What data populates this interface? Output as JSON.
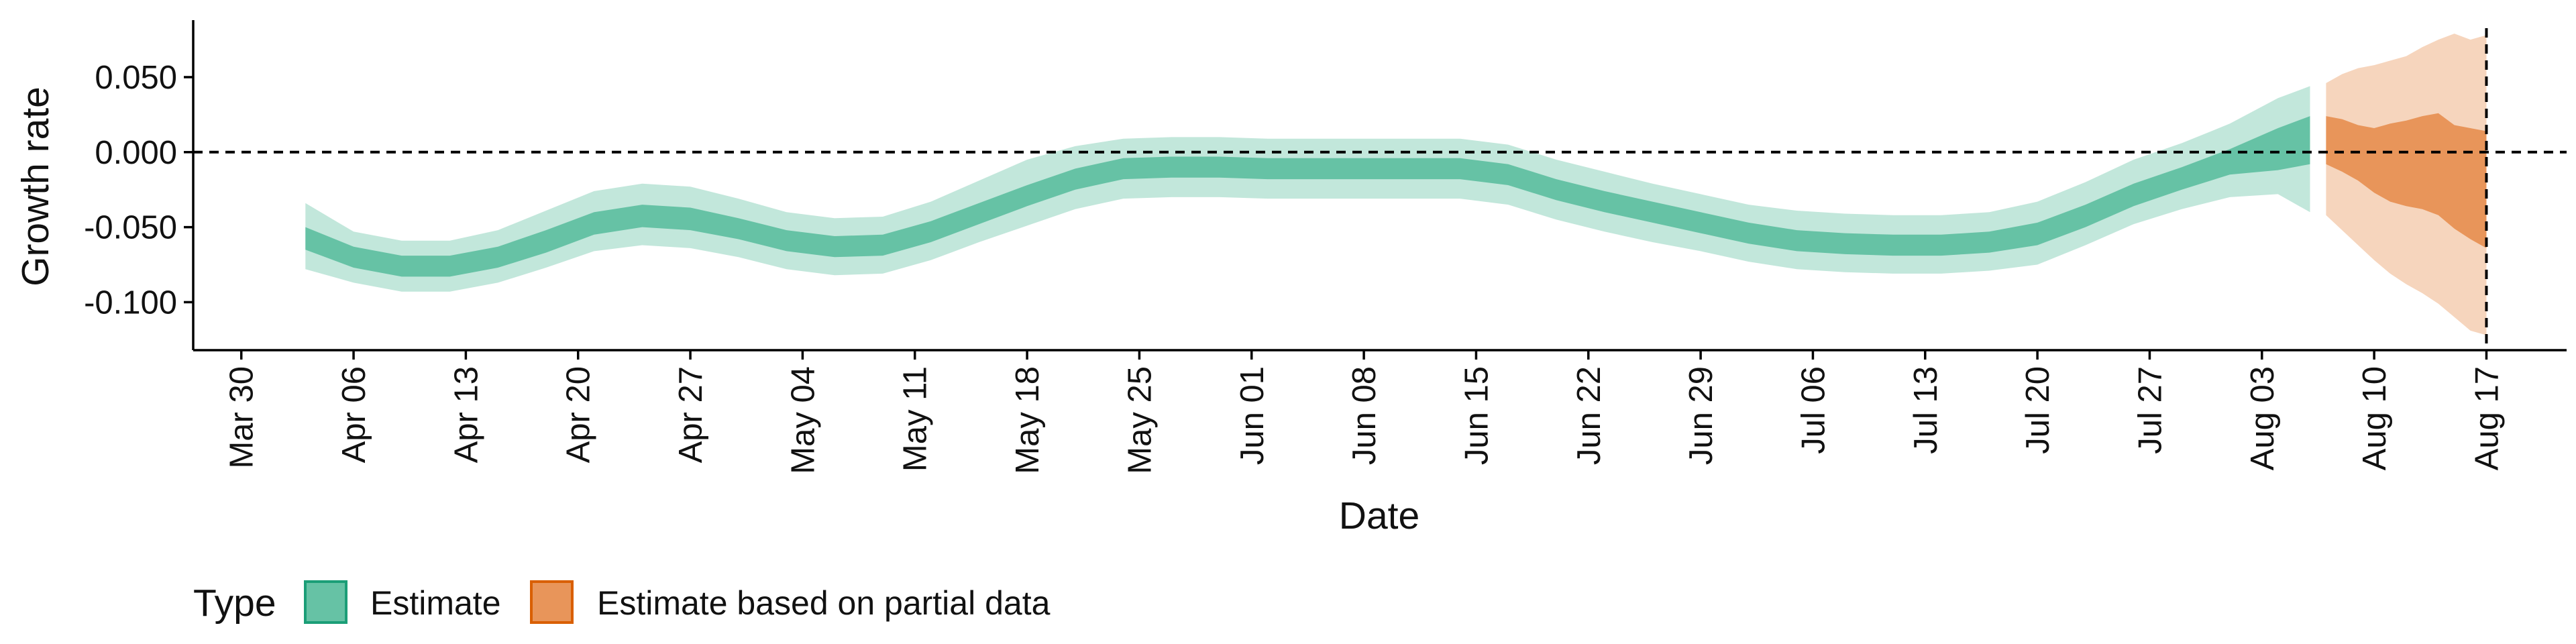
{
  "chart_data": {
    "type": "area",
    "xlabel": "Date",
    "ylabel": "Growth rate",
    "x_axis": {
      "type": "date",
      "range": [
        "2020-03-27",
        "2020-08-22"
      ],
      "ticks": [
        "2020-03-30",
        "2020-04-06",
        "2020-04-13",
        "2020-04-20",
        "2020-04-27",
        "2020-05-04",
        "2020-05-11",
        "2020-05-18",
        "2020-05-25",
        "2020-06-01",
        "2020-06-08",
        "2020-06-15",
        "2020-06-22",
        "2020-06-29",
        "2020-07-06",
        "2020-07-13",
        "2020-07-20",
        "2020-07-27",
        "2020-08-03",
        "2020-08-10",
        "2020-08-17"
      ],
      "tick_labels": [
        "Mar 30",
        "Apr 06",
        "Apr 13",
        "Apr 20",
        "Apr 27",
        "May 04",
        "May 11",
        "May 18",
        "May 25",
        "Jun 01",
        "Jun 08",
        "Jun 15",
        "Jun 22",
        "Jun 29",
        "Jul 06",
        "Jul 13",
        "Jul 20",
        "Jul 27",
        "Aug 03",
        "Aug 10",
        "Aug 17"
      ]
    },
    "y_axis": {
      "range": [
        -0.132,
        0.088
      ],
      "ticks": [
        0.05,
        0.0,
        -0.05,
        -0.1
      ],
      "tick_labels": [
        "0.050",
        "0.000",
        "-0.050",
        "-0.100"
      ]
    },
    "reference_lines": [
      {
        "axis": "y",
        "value": 0.0,
        "style": "dashed"
      },
      {
        "axis": "x",
        "value": "2020-08-17",
        "style": "dashed"
      }
    ],
    "grid": false,
    "legend": {
      "title": "Type",
      "position": "bottom-left",
      "entries": [
        {
          "label": "Estimate",
          "color": "#66c2a5",
          "border": "#1b9e77"
        },
        {
          "label": "Estimate based on partial data",
          "color": "#e8955a",
          "border": "#d95f02"
        }
      ]
    },
    "series": [
      {
        "name": "Estimate",
        "color": "#66c2a5",
        "x": [
          "2020-04-03",
          "2020-04-06",
          "2020-04-09",
          "2020-04-12",
          "2020-04-15",
          "2020-04-18",
          "2020-04-21",
          "2020-04-24",
          "2020-04-27",
          "2020-04-30",
          "2020-05-03",
          "2020-05-06",
          "2020-05-09",
          "2020-05-12",
          "2020-05-15",
          "2020-05-18",
          "2020-05-21",
          "2020-05-24",
          "2020-05-27",
          "2020-05-30",
          "2020-06-02",
          "2020-06-05",
          "2020-06-08",
          "2020-06-11",
          "2020-06-14",
          "2020-06-17",
          "2020-06-20",
          "2020-06-23",
          "2020-06-26",
          "2020-06-29",
          "2020-07-02",
          "2020-07-05",
          "2020-07-08",
          "2020-07-11",
          "2020-07-14",
          "2020-07-17",
          "2020-07-20",
          "2020-07-23",
          "2020-07-26",
          "2020-07-29",
          "2020-08-01",
          "2020-08-04",
          "2020-08-06"
        ],
        "inner_lower": [
          -0.065,
          -0.077,
          -0.083,
          -0.083,
          -0.077,
          -0.067,
          -0.055,
          -0.05,
          -0.052,
          -0.058,
          -0.066,
          -0.07,
          -0.069,
          -0.06,
          -0.048,
          -0.036,
          -0.025,
          -0.018,
          -0.017,
          -0.017,
          -0.018,
          -0.018,
          -0.018,
          -0.018,
          -0.018,
          -0.022,
          -0.032,
          -0.04,
          -0.047,
          -0.054,
          -0.061,
          -0.066,
          -0.068,
          -0.069,
          -0.069,
          -0.067,
          -0.062,
          -0.05,
          -0.036,
          -0.025,
          -0.015,
          -0.012,
          -0.008
        ],
        "inner_upper": [
          -0.05,
          -0.063,
          -0.069,
          -0.069,
          -0.063,
          -0.052,
          -0.04,
          -0.035,
          -0.037,
          -0.044,
          -0.052,
          -0.056,
          -0.055,
          -0.046,
          -0.034,
          -0.022,
          -0.011,
          -0.004,
          -0.003,
          -0.003,
          -0.004,
          -0.004,
          -0.004,
          -0.004,
          -0.004,
          -0.008,
          -0.018,
          -0.026,
          -0.033,
          -0.04,
          -0.047,
          -0.052,
          -0.054,
          -0.055,
          -0.055,
          -0.053,
          -0.047,
          -0.035,
          -0.021,
          -0.01,
          0.002,
          0.016,
          0.024
        ],
        "outer_lower": [
          -0.078,
          -0.087,
          -0.093,
          -0.093,
          -0.087,
          -0.077,
          -0.066,
          -0.062,
          -0.064,
          -0.07,
          -0.078,
          -0.082,
          -0.081,
          -0.072,
          -0.06,
          -0.049,
          -0.038,
          -0.031,
          -0.03,
          -0.03,
          -0.031,
          -0.031,
          -0.031,
          -0.031,
          -0.031,
          -0.035,
          -0.045,
          -0.053,
          -0.06,
          -0.066,
          -0.073,
          -0.078,
          -0.08,
          -0.081,
          -0.081,
          -0.079,
          -0.075,
          -0.062,
          -0.048,
          -0.038,
          -0.03,
          -0.028,
          -0.04
        ],
        "outer_upper": [
          -0.034,
          -0.053,
          -0.059,
          -0.059,
          -0.052,
          -0.039,
          -0.026,
          -0.021,
          -0.023,
          -0.031,
          -0.04,
          -0.044,
          -0.043,
          -0.033,
          -0.019,
          -0.005,
          0.004,
          0.009,
          0.01,
          0.01,
          0.009,
          0.009,
          0.009,
          0.009,
          0.009,
          0.005,
          -0.005,
          -0.013,
          -0.021,
          -0.028,
          -0.035,
          -0.039,
          -0.041,
          -0.042,
          -0.042,
          -0.04,
          -0.033,
          -0.02,
          -0.005,
          0.006,
          0.019,
          0.036,
          0.044
        ]
      },
      {
        "name": "Estimate based on partial data",
        "color": "#e8955a",
        "x": [
          "2020-08-07",
          "2020-08-08",
          "2020-08-09",
          "2020-08-10",
          "2020-08-11",
          "2020-08-12",
          "2020-08-13",
          "2020-08-14",
          "2020-08-15",
          "2020-08-16",
          "2020-08-17"
        ],
        "inner_lower": [
          -0.008,
          -0.013,
          -0.019,
          -0.027,
          -0.033,
          -0.036,
          -0.038,
          -0.042,
          -0.051,
          -0.058,
          -0.064
        ],
        "inner_upper": [
          0.024,
          0.022,
          0.018,
          0.016,
          0.019,
          0.021,
          0.024,
          0.026,
          0.018,
          0.016,
          0.014
        ],
        "outer_lower": [
          -0.042,
          -0.052,
          -0.062,
          -0.072,
          -0.081,
          -0.088,
          -0.094,
          -0.101,
          -0.11,
          -0.119,
          -0.122
        ],
        "outer_upper": [
          0.046,
          0.052,
          0.056,
          0.058,
          0.061,
          0.064,
          0.07,
          0.075,
          0.079,
          0.075,
          0.078
        ]
      }
    ]
  }
}
